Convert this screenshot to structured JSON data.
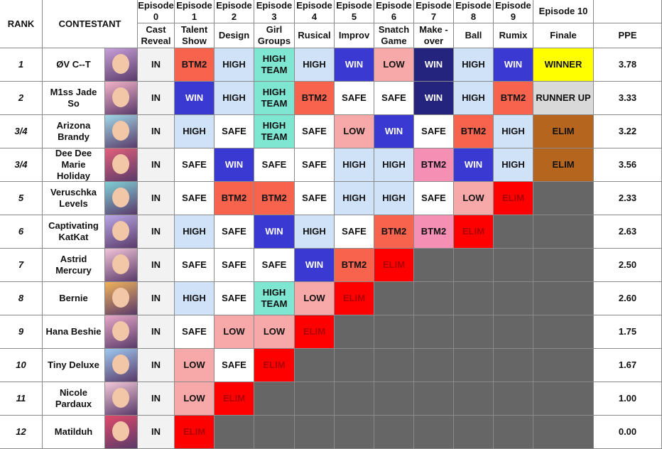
{
  "header": {
    "rank": "RANK",
    "contestant": "CONTESTANT",
    "ppe": "PPE",
    "episodes": [
      {
        "episode": "Episode 0",
        "theme": "Cast Reveal"
      },
      {
        "episode": "Episode 1",
        "theme": "Talent Show"
      },
      {
        "episode": "Episode 2",
        "theme": "Design"
      },
      {
        "episode": "Episode 3",
        "theme": "Girl Groups"
      },
      {
        "episode": "Episode 4",
        "theme": "Rusical"
      },
      {
        "episode": "Episode 5",
        "theme": "Improv"
      },
      {
        "episode": "Episode 6",
        "theme": "Snatch Game"
      },
      {
        "episode": "Episode 7",
        "theme": "Make - over"
      },
      {
        "episode": "Episode 8",
        "theme": "Ball"
      },
      {
        "episode": "Episode 9",
        "theme": "Rumix"
      },
      {
        "episode": "Episode 10",
        "theme": "Finale"
      }
    ]
  },
  "rows": [
    {
      "rank": "1",
      "contestant": "ØV C--T",
      "ppe": "3.78",
      "results": [
        {
          "text": "IN",
          "bg": "#f2f2f2"
        },
        {
          "text": "BTM2",
          "bg": "#f7634c"
        },
        {
          "text": "HIGH",
          "bg": "#cfe2f7"
        },
        {
          "text": "HIGH TEAM",
          "bg": "#7fe6d2"
        },
        {
          "text": "HIGH",
          "bg": "#cfe2f7"
        },
        {
          "text": "WIN",
          "bg": "#3a3ad2",
          "fg": "#ffffff"
        },
        {
          "text": "LOW",
          "bg": "#f7a8a8"
        },
        {
          "text": "WIN",
          "bg": "#24247e",
          "fg": "#ffffff"
        },
        {
          "text": "HIGH",
          "bg": "#cfe2f7"
        },
        {
          "text": "WIN",
          "bg": "#3a3ad2",
          "fg": "#ffffff"
        },
        {
          "text": "WINNER",
          "bg": "#ffff00"
        }
      ]
    },
    {
      "rank": "2",
      "contestant": "M1ss Jade So",
      "ppe": "3.33",
      "results": [
        {
          "text": "IN",
          "bg": "#f2f2f2"
        },
        {
          "text": "WIN",
          "bg": "#3a3ad2",
          "fg": "#ffffff"
        },
        {
          "text": "HIGH",
          "bg": "#cfe2f7"
        },
        {
          "text": "HIGH TEAM",
          "bg": "#7fe6d2"
        },
        {
          "text": "BTM2",
          "bg": "#f7634c"
        },
        {
          "text": "SAFE",
          "bg": "#ffffff"
        },
        {
          "text": "SAFE",
          "bg": "#ffffff"
        },
        {
          "text": "WIN",
          "bg": "#24247e",
          "fg": "#ffffff"
        },
        {
          "text": "HIGH",
          "bg": "#cfe2f7"
        },
        {
          "text": "BTM2",
          "bg": "#f7634c"
        },
        {
          "text": "RUNNER UP",
          "bg": "#d9d9d9"
        }
      ]
    },
    {
      "rank": "3/4",
      "contestant": "Arizona Brandy",
      "ppe": "3.22",
      "results": [
        {
          "text": "IN",
          "bg": "#f2f2f2"
        },
        {
          "text": "HIGH",
          "bg": "#cfe2f7"
        },
        {
          "text": "SAFE",
          "bg": "#ffffff"
        },
        {
          "text": "HIGH TEAM",
          "bg": "#7fe6d2"
        },
        {
          "text": "SAFE",
          "bg": "#ffffff"
        },
        {
          "text": "LOW",
          "bg": "#f7a8a8"
        },
        {
          "text": "WIN",
          "bg": "#3a3ad2",
          "fg": "#ffffff"
        },
        {
          "text": "SAFE",
          "bg": "#ffffff"
        },
        {
          "text": "BTM2",
          "bg": "#f7634c"
        },
        {
          "text": "HIGH",
          "bg": "#cfe2f7"
        },
        {
          "text": "ELIM",
          "bg": "#b5651d"
        }
      ]
    },
    {
      "rank": "3/4",
      "contestant": "Dee Dee Marie Holiday",
      "ppe": "3.56",
      "results": [
        {
          "text": "IN",
          "bg": "#f2f2f2"
        },
        {
          "text": "SAFE",
          "bg": "#ffffff"
        },
        {
          "text": "WIN",
          "bg": "#3a3ad2",
          "fg": "#ffffff"
        },
        {
          "text": "SAFE",
          "bg": "#ffffff"
        },
        {
          "text": "SAFE",
          "bg": "#ffffff"
        },
        {
          "text": "HIGH",
          "bg": "#cfe2f7"
        },
        {
          "text": "HIGH",
          "bg": "#cfe2f7"
        },
        {
          "text": "BTM2",
          "bg": "#f58fb3"
        },
        {
          "text": "WIN",
          "bg": "#3a3ad2",
          "fg": "#ffffff"
        },
        {
          "text": "HIGH",
          "bg": "#cfe2f7"
        },
        {
          "text": "ELIM",
          "bg": "#b5651d"
        }
      ]
    },
    {
      "rank": "5",
      "contestant": "Veruschka Levels",
      "ppe": "2.33",
      "results": [
        {
          "text": "IN",
          "bg": "#f2f2f2"
        },
        {
          "text": "SAFE",
          "bg": "#ffffff"
        },
        {
          "text": "BTM2",
          "bg": "#f7634c"
        },
        {
          "text": "BTM2",
          "bg": "#f7634c"
        },
        {
          "text": "SAFE",
          "bg": "#ffffff"
        },
        {
          "text": "HIGH",
          "bg": "#cfe2f7"
        },
        {
          "text": "HIGH",
          "bg": "#cfe2f7"
        },
        {
          "text": "SAFE",
          "bg": "#ffffff"
        },
        {
          "text": "LOW",
          "bg": "#f7a8a8"
        },
        {
          "text": "ELIM",
          "bg": "#ff0000",
          "fg": "#b00000"
        },
        null
      ]
    },
    {
      "rank": "6",
      "contestant": "Captivating KatKat",
      "ppe": "2.63",
      "results": [
        {
          "text": "IN",
          "bg": "#f2f2f2"
        },
        {
          "text": "HIGH",
          "bg": "#cfe2f7"
        },
        {
          "text": "SAFE",
          "bg": "#ffffff"
        },
        {
          "text": "WIN",
          "bg": "#3a3ad2",
          "fg": "#ffffff"
        },
        {
          "text": "HIGH",
          "bg": "#cfe2f7"
        },
        {
          "text": "SAFE",
          "bg": "#ffffff"
        },
        {
          "text": "BTM2",
          "bg": "#f7634c"
        },
        {
          "text": "BTM2",
          "bg": "#f58fb3"
        },
        {
          "text": "ELIM",
          "bg": "#ff0000",
          "fg": "#b00000"
        },
        null,
        null
      ]
    },
    {
      "rank": "7",
      "contestant": "Astrid Mercury",
      "ppe": "2.50",
      "results": [
        {
          "text": "IN",
          "bg": "#f2f2f2"
        },
        {
          "text": "SAFE",
          "bg": "#ffffff"
        },
        {
          "text": "SAFE",
          "bg": "#ffffff"
        },
        {
          "text": "SAFE",
          "bg": "#ffffff"
        },
        {
          "text": "WIN",
          "bg": "#3a3ad2",
          "fg": "#ffffff"
        },
        {
          "text": "BTM2",
          "bg": "#f7634c"
        },
        {
          "text": "ELIM",
          "bg": "#ff0000",
          "fg": "#b00000"
        },
        null,
        null,
        null,
        null
      ]
    },
    {
      "rank": "8",
      "contestant": "Bernie",
      "ppe": "2.60",
      "results": [
        {
          "text": "IN",
          "bg": "#f2f2f2"
        },
        {
          "text": "HIGH",
          "bg": "#cfe2f7"
        },
        {
          "text": "SAFE",
          "bg": "#ffffff"
        },
        {
          "text": "HIGH TEAM",
          "bg": "#7fe6d2"
        },
        {
          "text": "LOW",
          "bg": "#f7a8a8"
        },
        {
          "text": "ELIM",
          "bg": "#ff0000",
          "fg": "#b00000"
        },
        null,
        null,
        null,
        null,
        null
      ]
    },
    {
      "rank": "9",
      "contestant": "Hana Beshie",
      "ppe": "1.75",
      "results": [
        {
          "text": "IN",
          "bg": "#f2f2f2"
        },
        {
          "text": "SAFE",
          "bg": "#ffffff"
        },
        {
          "text": "LOW",
          "bg": "#f7a8a8"
        },
        {
          "text": "LOW",
          "bg": "#f7a8a8"
        },
        {
          "text": "ELIM",
          "bg": "#ff0000",
          "fg": "#b00000"
        },
        null,
        null,
        null,
        null,
        null,
        null
      ]
    },
    {
      "rank": "10",
      "contestant": "Tiny Deluxe",
      "ppe": "1.67",
      "results": [
        {
          "text": "IN",
          "bg": "#f2f2f2"
        },
        {
          "text": "LOW",
          "bg": "#f7a8a8"
        },
        {
          "text": "SAFE",
          "bg": "#ffffff"
        },
        {
          "text": "ELIM",
          "bg": "#ff0000",
          "fg": "#b00000"
        },
        null,
        null,
        null,
        null,
        null,
        null,
        null
      ]
    },
    {
      "rank": "11",
      "contestant": "Nicole Pardaux",
      "ppe": "1.00",
      "results": [
        {
          "text": "IN",
          "bg": "#f2f2f2"
        },
        {
          "text": "LOW",
          "bg": "#f7a8a8"
        },
        {
          "text": "ELIM",
          "bg": "#ff0000",
          "fg": "#b00000"
        },
        null,
        null,
        null,
        null,
        null,
        null,
        null,
        null
      ]
    },
    {
      "rank": "12",
      "contestant": "Matilduh",
      "ppe": "0.00",
      "results": [
        {
          "text": "IN",
          "bg": "#f2f2f2"
        },
        {
          "text": "ELIM",
          "bg": "#ff0000",
          "fg": "#b00000"
        },
        null,
        null,
        null,
        null,
        null,
        null,
        null,
        null,
        null
      ]
    }
  ]
}
